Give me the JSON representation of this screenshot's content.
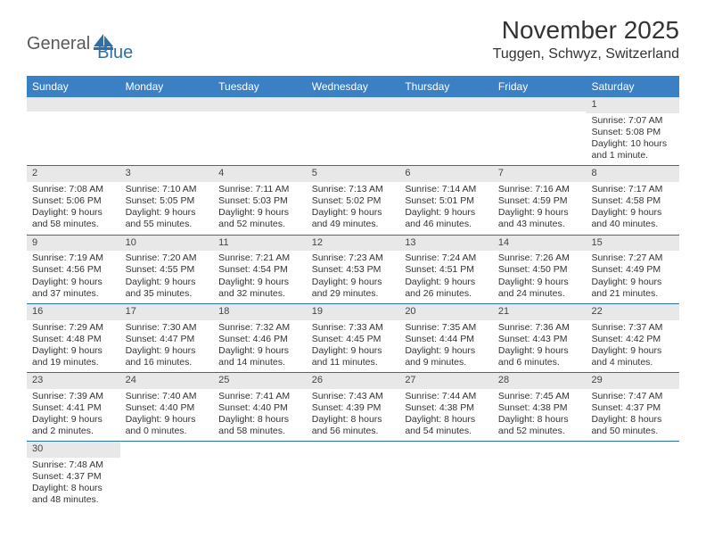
{
  "logo": {
    "word1": "General",
    "word2": "Blue",
    "shape_color": "#2f6fa8",
    "text1_color": "#5a5a5a",
    "text2_color": "#2f6fa8"
  },
  "title": "November 2025",
  "location": "Tuggen, Schwyz, Switzerland",
  "header_bg": "#3b7fc4",
  "header_fg": "#ffffff",
  "rule_color": "#2f6fa8",
  "stripe_bg": "#e8e8e8",
  "text_color": "#333333",
  "title_fontsize": 28,
  "location_fontsize": 16,
  "dayhead_fontsize": 12,
  "cell_fontsize": 10.5,
  "day_names": [
    "Sunday",
    "Monday",
    "Tuesday",
    "Wednesday",
    "Thursday",
    "Friday",
    "Saturday"
  ],
  "weeks": [
    [
      null,
      null,
      null,
      null,
      null,
      null,
      {
        "n": "1",
        "sunrise": "Sunrise: 7:07 AM",
        "sunset": "Sunset: 5:08 PM",
        "day1": "Daylight: 10 hours",
        "day2": "and 1 minute."
      }
    ],
    [
      {
        "n": "2",
        "sunrise": "Sunrise: 7:08 AM",
        "sunset": "Sunset: 5:06 PM",
        "day1": "Daylight: 9 hours",
        "day2": "and 58 minutes."
      },
      {
        "n": "3",
        "sunrise": "Sunrise: 7:10 AM",
        "sunset": "Sunset: 5:05 PM",
        "day1": "Daylight: 9 hours",
        "day2": "and 55 minutes."
      },
      {
        "n": "4",
        "sunrise": "Sunrise: 7:11 AM",
        "sunset": "Sunset: 5:03 PM",
        "day1": "Daylight: 9 hours",
        "day2": "and 52 minutes."
      },
      {
        "n": "5",
        "sunrise": "Sunrise: 7:13 AM",
        "sunset": "Sunset: 5:02 PM",
        "day1": "Daylight: 9 hours",
        "day2": "and 49 minutes."
      },
      {
        "n": "6",
        "sunrise": "Sunrise: 7:14 AM",
        "sunset": "Sunset: 5:01 PM",
        "day1": "Daylight: 9 hours",
        "day2": "and 46 minutes."
      },
      {
        "n": "7",
        "sunrise": "Sunrise: 7:16 AM",
        "sunset": "Sunset: 4:59 PM",
        "day1": "Daylight: 9 hours",
        "day2": "and 43 minutes."
      },
      {
        "n": "8",
        "sunrise": "Sunrise: 7:17 AM",
        "sunset": "Sunset: 4:58 PM",
        "day1": "Daylight: 9 hours",
        "day2": "and 40 minutes."
      }
    ],
    [
      {
        "n": "9",
        "sunrise": "Sunrise: 7:19 AM",
        "sunset": "Sunset: 4:56 PM",
        "day1": "Daylight: 9 hours",
        "day2": "and 37 minutes."
      },
      {
        "n": "10",
        "sunrise": "Sunrise: 7:20 AM",
        "sunset": "Sunset: 4:55 PM",
        "day1": "Daylight: 9 hours",
        "day2": "and 35 minutes."
      },
      {
        "n": "11",
        "sunrise": "Sunrise: 7:21 AM",
        "sunset": "Sunset: 4:54 PM",
        "day1": "Daylight: 9 hours",
        "day2": "and 32 minutes."
      },
      {
        "n": "12",
        "sunrise": "Sunrise: 7:23 AM",
        "sunset": "Sunset: 4:53 PM",
        "day1": "Daylight: 9 hours",
        "day2": "and 29 minutes."
      },
      {
        "n": "13",
        "sunrise": "Sunrise: 7:24 AM",
        "sunset": "Sunset: 4:51 PM",
        "day1": "Daylight: 9 hours",
        "day2": "and 26 minutes."
      },
      {
        "n": "14",
        "sunrise": "Sunrise: 7:26 AM",
        "sunset": "Sunset: 4:50 PM",
        "day1": "Daylight: 9 hours",
        "day2": "and 24 minutes."
      },
      {
        "n": "15",
        "sunrise": "Sunrise: 7:27 AM",
        "sunset": "Sunset: 4:49 PM",
        "day1": "Daylight: 9 hours",
        "day2": "and 21 minutes."
      }
    ],
    [
      {
        "n": "16",
        "sunrise": "Sunrise: 7:29 AM",
        "sunset": "Sunset: 4:48 PM",
        "day1": "Daylight: 9 hours",
        "day2": "and 19 minutes."
      },
      {
        "n": "17",
        "sunrise": "Sunrise: 7:30 AM",
        "sunset": "Sunset: 4:47 PM",
        "day1": "Daylight: 9 hours",
        "day2": "and 16 minutes."
      },
      {
        "n": "18",
        "sunrise": "Sunrise: 7:32 AM",
        "sunset": "Sunset: 4:46 PM",
        "day1": "Daylight: 9 hours",
        "day2": "and 14 minutes."
      },
      {
        "n": "19",
        "sunrise": "Sunrise: 7:33 AM",
        "sunset": "Sunset: 4:45 PM",
        "day1": "Daylight: 9 hours",
        "day2": "and 11 minutes."
      },
      {
        "n": "20",
        "sunrise": "Sunrise: 7:35 AM",
        "sunset": "Sunset: 4:44 PM",
        "day1": "Daylight: 9 hours",
        "day2": "and 9 minutes."
      },
      {
        "n": "21",
        "sunrise": "Sunrise: 7:36 AM",
        "sunset": "Sunset: 4:43 PM",
        "day1": "Daylight: 9 hours",
        "day2": "and 6 minutes."
      },
      {
        "n": "22",
        "sunrise": "Sunrise: 7:37 AM",
        "sunset": "Sunset: 4:42 PM",
        "day1": "Daylight: 9 hours",
        "day2": "and 4 minutes."
      }
    ],
    [
      {
        "n": "23",
        "sunrise": "Sunrise: 7:39 AM",
        "sunset": "Sunset: 4:41 PM",
        "day1": "Daylight: 9 hours",
        "day2": "and 2 minutes."
      },
      {
        "n": "24",
        "sunrise": "Sunrise: 7:40 AM",
        "sunset": "Sunset: 4:40 PM",
        "day1": "Daylight: 9 hours",
        "day2": "and 0 minutes."
      },
      {
        "n": "25",
        "sunrise": "Sunrise: 7:41 AM",
        "sunset": "Sunset: 4:40 PM",
        "day1": "Daylight: 8 hours",
        "day2": "and 58 minutes."
      },
      {
        "n": "26",
        "sunrise": "Sunrise: 7:43 AM",
        "sunset": "Sunset: 4:39 PM",
        "day1": "Daylight: 8 hours",
        "day2": "and 56 minutes."
      },
      {
        "n": "27",
        "sunrise": "Sunrise: 7:44 AM",
        "sunset": "Sunset: 4:38 PM",
        "day1": "Daylight: 8 hours",
        "day2": "and 54 minutes."
      },
      {
        "n": "28",
        "sunrise": "Sunrise: 7:45 AM",
        "sunset": "Sunset: 4:38 PM",
        "day1": "Daylight: 8 hours",
        "day2": "and 52 minutes."
      },
      {
        "n": "29",
        "sunrise": "Sunrise: 7:47 AM",
        "sunset": "Sunset: 4:37 PM",
        "day1": "Daylight: 8 hours",
        "day2": "and 50 minutes."
      }
    ],
    [
      {
        "n": "30",
        "sunrise": "Sunrise: 7:48 AM",
        "sunset": "Sunset: 4:37 PM",
        "day1": "Daylight: 8 hours",
        "day2": "and 48 minutes."
      },
      null,
      null,
      null,
      null,
      null,
      null
    ]
  ]
}
